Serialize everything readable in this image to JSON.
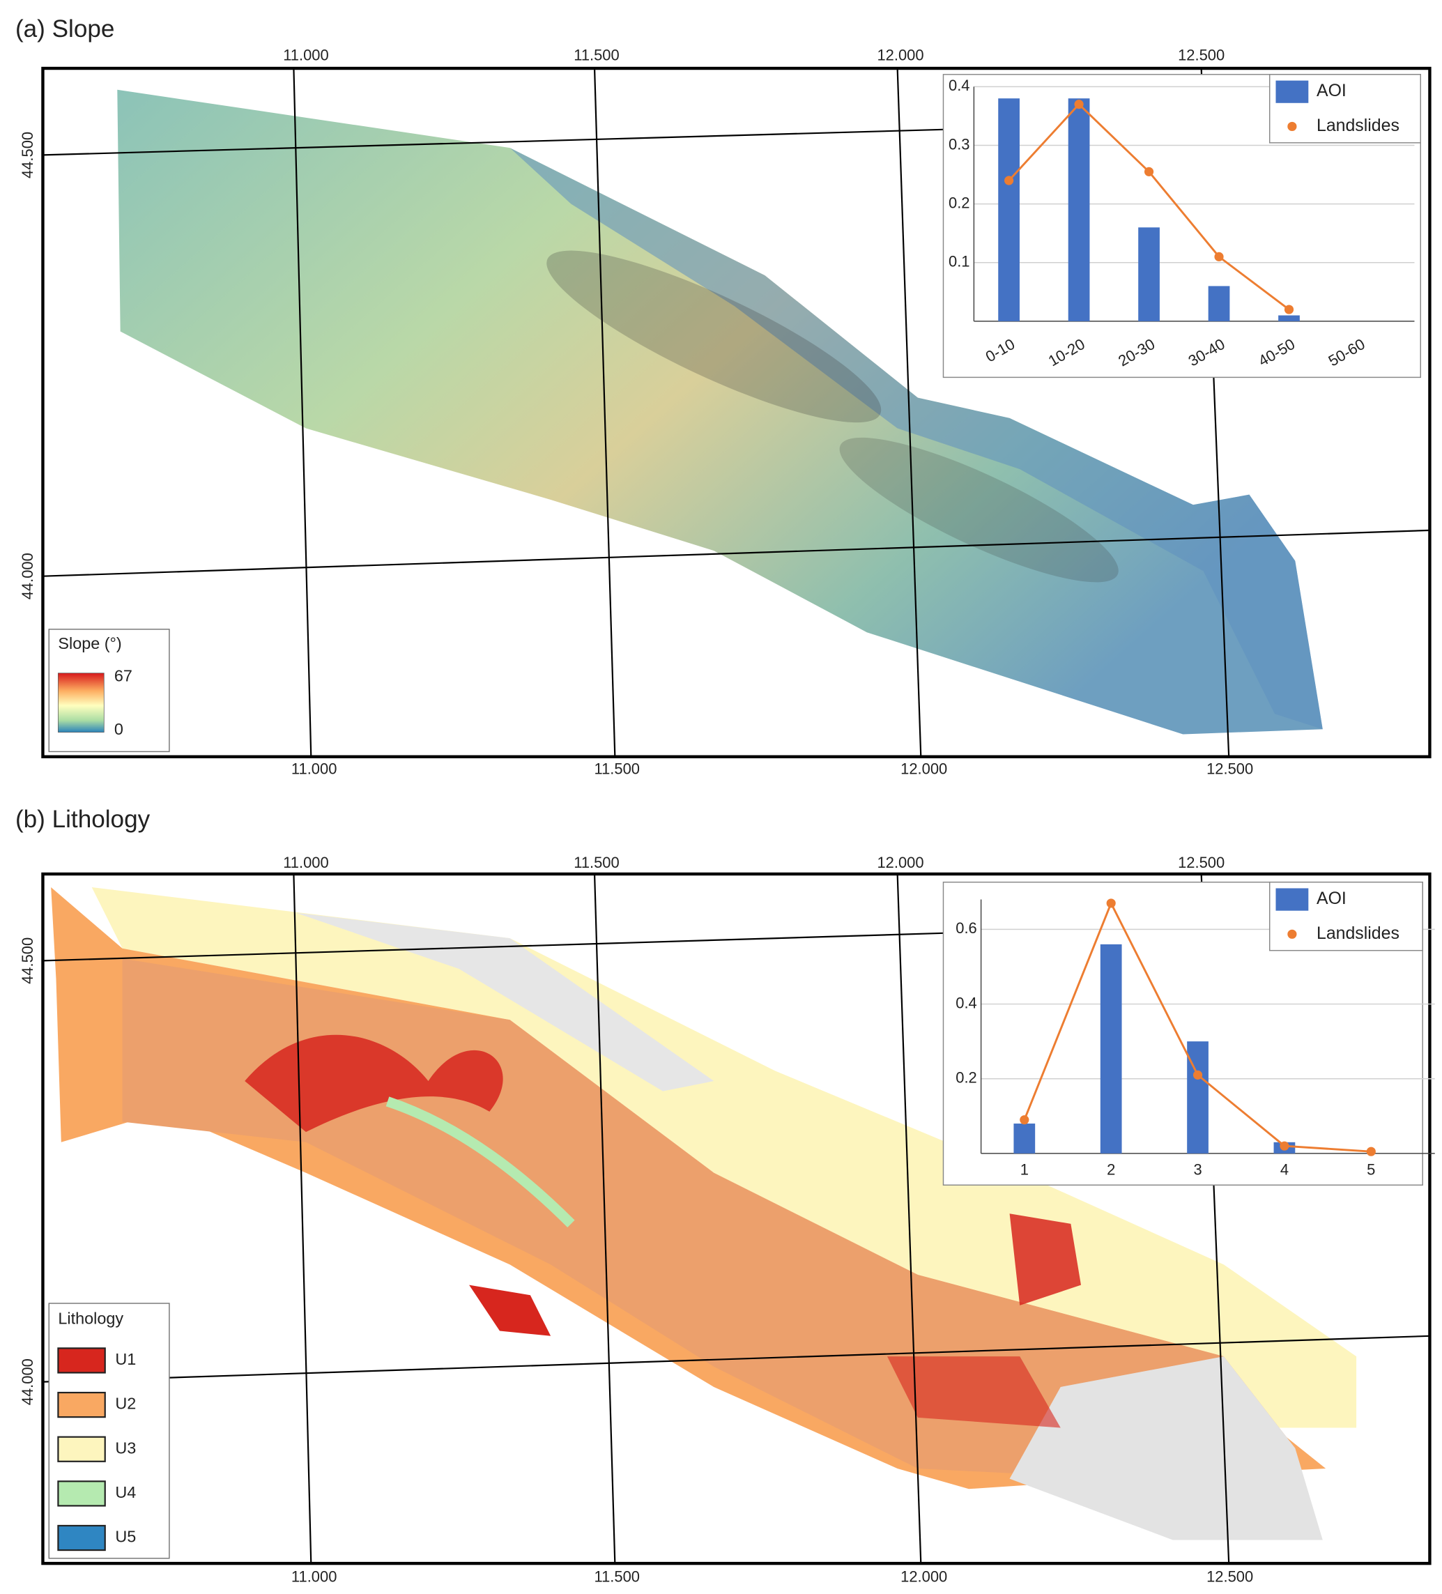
{
  "maps": [
    {
      "title": "(a) Slope",
      "lon_labels": [
        "11.000",
        "11.500",
        "12.000",
        "12.500"
      ],
      "lat_labels": [
        "44.500",
        "44.000"
      ],
      "legend": {
        "title": "Slope (°)",
        "max": "67",
        "min": "0"
      }
    },
    {
      "title": "(b) Lithology",
      "lon_labels": [
        "11.000",
        "11.500",
        "12.000",
        "12.500"
      ],
      "lat_labels": [
        "44.500",
        "44.000"
      ],
      "legend": {
        "title": "Lithology",
        "items": [
          {
            "label": "U1",
            "color": "#d7261e"
          },
          {
            "label": "U2",
            "color": "#f9a862"
          },
          {
            "label": "U3",
            "color": "#fdf5be"
          },
          {
            "label": "U4",
            "color": "#b5eab0"
          },
          {
            "label": "U5",
            "color": "#2f86c2"
          }
        ]
      }
    }
  ],
  "chart_data": [
    {
      "type": "bar",
      "categories": [
        "0-10",
        "10-20",
        "20-30",
        "30-40",
        "40-50",
        "50-60"
      ],
      "series": [
        {
          "name": "AOI",
          "type": "bar",
          "color": "#4472c4",
          "values": [
            0.38,
            0.38,
            0.16,
            0.06,
            0.01,
            0
          ]
        },
        {
          "name": "Landslides",
          "type": "line",
          "color": "#ed7d31",
          "values": [
            0.24,
            0.37,
            0.255,
            0.11,
            0.02,
            null
          ]
        }
      ],
      "ylim": [
        0,
        0.4
      ],
      "yticks": [
        0.1,
        0.2,
        0.3,
        0.4
      ],
      "grid": true,
      "legend": "upper right"
    },
    {
      "type": "bar",
      "categories": [
        "1",
        "2",
        "3",
        "4",
        "5"
      ],
      "series": [
        {
          "name": "AOI",
          "type": "bar",
          "color": "#4472c4",
          "values": [
            0.08,
            0.56,
            0.3,
            0.03,
            0
          ]
        },
        {
          "name": "Landslides",
          "type": "line",
          "color": "#ed7d31",
          "values": [
            0.09,
            0.67,
            0.21,
            0.02,
            0.005
          ]
        }
      ],
      "ylim": [
        0,
        0.68
      ],
      "yticks": [
        0.2,
        0.4,
        0.6
      ],
      "grid": true,
      "legend": "upper right"
    }
  ]
}
